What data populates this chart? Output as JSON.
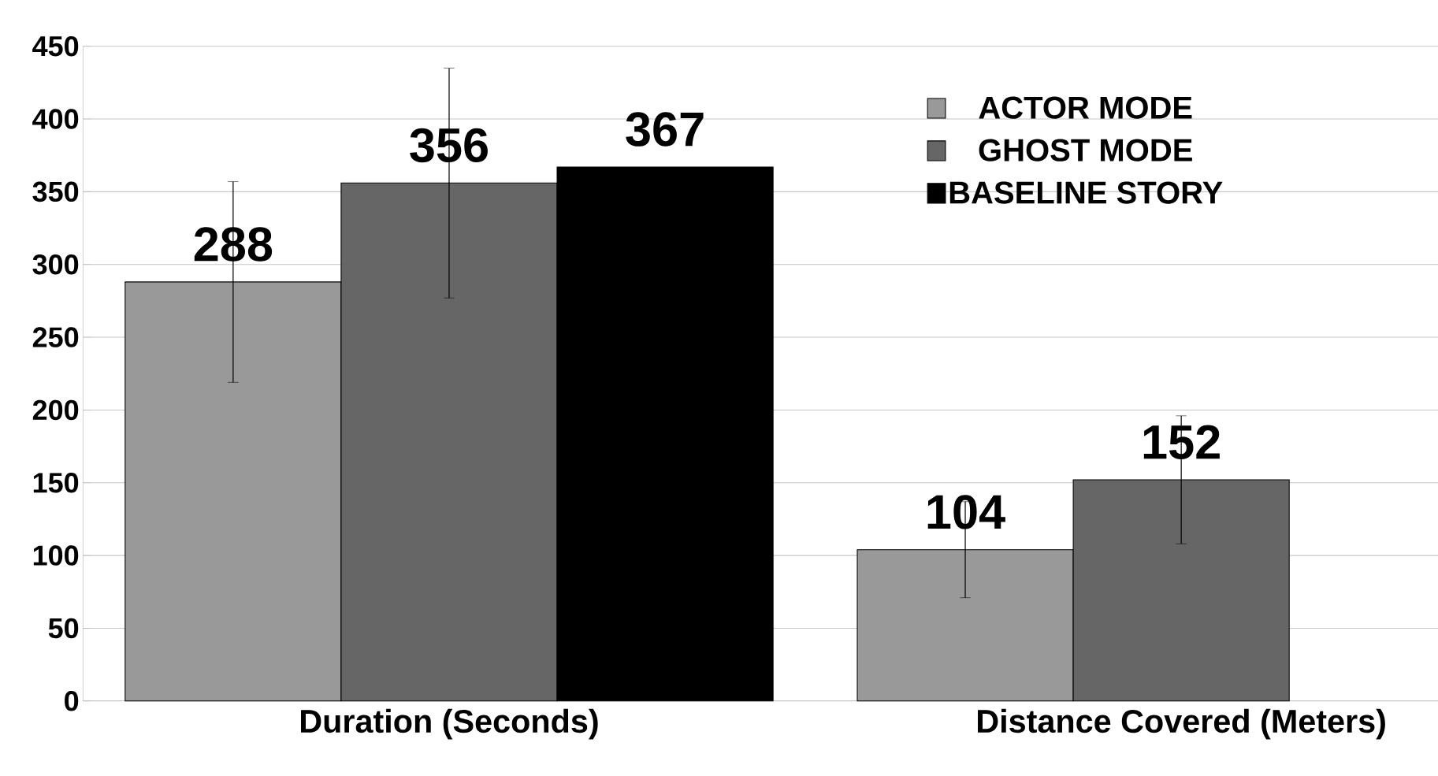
{
  "chart_data": {
    "type": "bar",
    "categories": [
      "Duration (Seconds)",
      "Distance Covered (Meters)"
    ],
    "series": [
      {
        "name": "ACTOR MODE",
        "color": "#999999",
        "values": [
          288,
          104
        ],
        "errors": [
          69,
          33
        ]
      },
      {
        "name": "GHOST  MODE",
        "color": "#666666",
        "values": [
          356,
          152
        ],
        "errors": [
          79,
          44
        ]
      },
      {
        "name": "BASELINE STORY",
        "color": "#000000",
        "values": [
          367,
          null
        ]
      }
    ],
    "ylim": [
      0,
      450
    ],
    "yticks": [
      0,
      50,
      100,
      150,
      200,
      250,
      300,
      350,
      400,
      450
    ],
    "grid": "y",
    "legend": "top right",
    "data_labels": true
  }
}
